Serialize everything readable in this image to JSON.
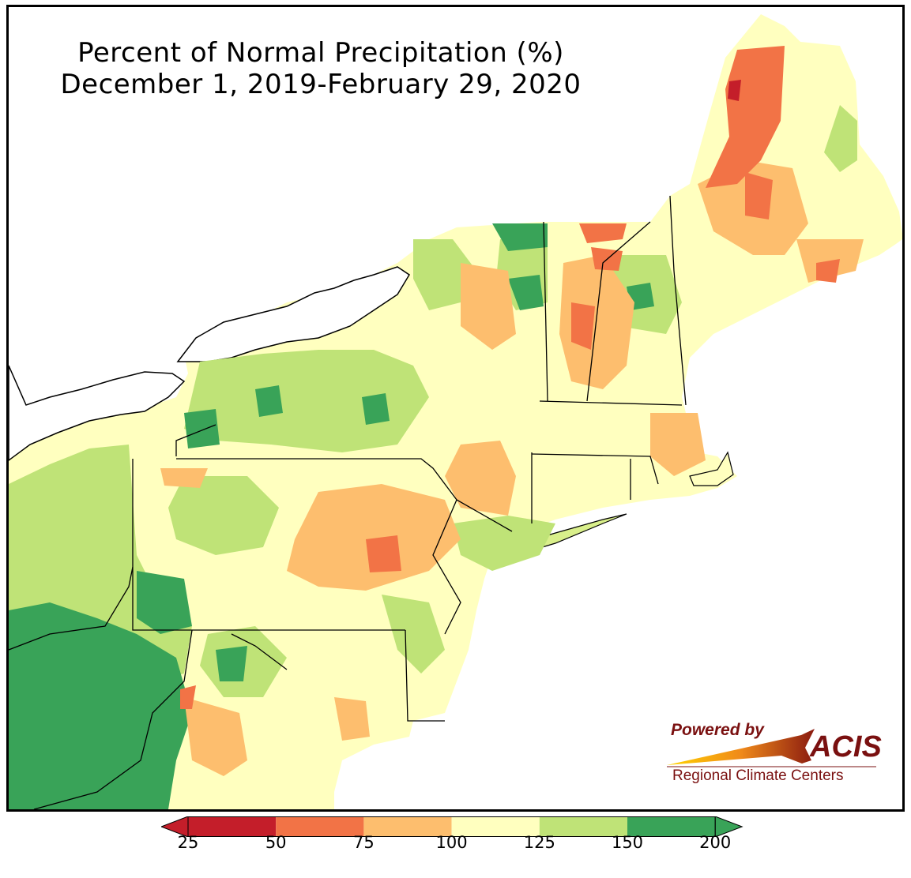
{
  "title": {
    "line1": "Percent of Normal Precipitation (%)",
    "line2": "December 1, 2019-February 29, 2020"
  },
  "legend": {
    "ticks": [
      "25",
      "50",
      "75",
      "100",
      "125",
      "150",
      "200"
    ],
    "bins": [
      {
        "from": 25,
        "to": 50,
        "color": "#c41e2a"
      },
      {
        "from": 50,
        "to": 75,
        "color": "#f27346"
      },
      {
        "from": 75,
        "to": 100,
        "color": "#fdbe6e"
      },
      {
        "from": 100,
        "to": 125,
        "color": "#ffffbf"
      },
      {
        "from": 125,
        "to": 150,
        "color": "#bfe377"
      },
      {
        "from": 150,
        "to": 200,
        "color": "#39a358"
      }
    ],
    "under_color": "#a50026",
    "over_color": "#00603a"
  },
  "logo": {
    "powered_by": "Powered by",
    "name": "ACIS",
    "subtitle": "Regional Climate Centers"
  },
  "colors": {
    "water": "#ffffff",
    "state_border": "#000000",
    "county_border": "#9a9a9a"
  }
}
